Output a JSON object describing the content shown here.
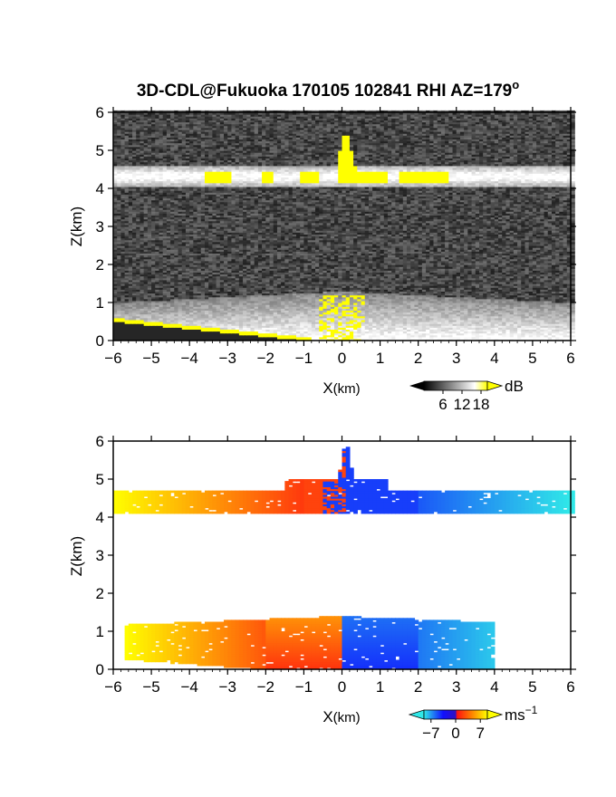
{
  "title_main": "3D-CDL@Fukuoka 170105 102841 RHI AZ=179",
  "title_superscript": "o",
  "chart_data": [
    {
      "type": "heatmap",
      "quantity": "SNR",
      "xlabel_main": "X",
      "xlabel_unit": "(km)",
      "ylabel": "Z(km)",
      "xlim": [
        -6,
        6
      ],
      "ylim": [
        0,
        6
      ],
      "xticks": [
        "-6",
        "-5",
        "-4",
        "-3",
        "-2",
        "-1",
        "0",
        "1",
        "2",
        "3",
        "4",
        "5",
        "6"
      ],
      "yticks": [
        "0",
        "1",
        "2",
        "3",
        "4",
        "5",
        "6"
      ],
      "colorbar": {
        "ticks": [
          "6",
          "12",
          "18"
        ],
        "unit": "dB",
        "range": [
          0,
          20
        ],
        "colors": [
          "#0a0a0a",
          "#ffffff",
          "#ffff00"
        ]
      },
      "cloud_layer": {
        "base_km": 4.05,
        "top_km": 4.6,
        "peak_x_km": 0.1,
        "peak_top_km": 5.6,
        "high_snr_segments_km": [
          [
            -3.6,
            -2.9
          ],
          [
            -2.1,
            -1.8
          ],
          [
            -1.1,
            -0.6
          ],
          [
            -0.1,
            1.2
          ],
          [
            1.5,
            2.8
          ]
        ]
      },
      "boundary_layer": {
        "top_km": 1.3,
        "x_extent_km": [
          -6,
          6
        ],
        "max_snr_dB": 20
      }
    },
    {
      "type": "heatmap",
      "quantity": "Doppler velocity",
      "xlabel_main": "X",
      "xlabel_unit": "(km)",
      "ylabel": "Z(km)",
      "xlim": [
        -6,
        6
      ],
      "ylim": [
        0,
        6
      ],
      "xticks": [
        "-6",
        "-5",
        "-4",
        "-3",
        "-2",
        "-1",
        "0",
        "1",
        "2",
        "3",
        "4",
        "5",
        "6"
      ],
      "yticks": [
        "0",
        "1",
        "2",
        "3",
        "4",
        "5",
        "6"
      ],
      "colorbar": {
        "ticks": [
          "−7",
          "0",
          "7"
        ],
        "unit_main": "ms",
        "unit_exp": "−1",
        "range": [
          -9,
          9
        ],
        "colors": [
          "#20e0e0",
          "#1010ff",
          "#ff1010",
          "#ffff00"
        ]
      },
      "cloud_layer": {
        "base_km": 4.1,
        "top_km": 4.7,
        "x_extent_km": [
          -6,
          6
        ],
        "velocity_at_left_edge_ms": 7,
        "velocity_at_right_edge_ms": -7
      },
      "boundary_layer": {
        "top_km": 1.4,
        "x_extent_km": [
          -5.7,
          4.0
        ],
        "velocity_at_left_edge_ms": 7,
        "velocity_at_right_edge_ms": -6
      }
    }
  ]
}
